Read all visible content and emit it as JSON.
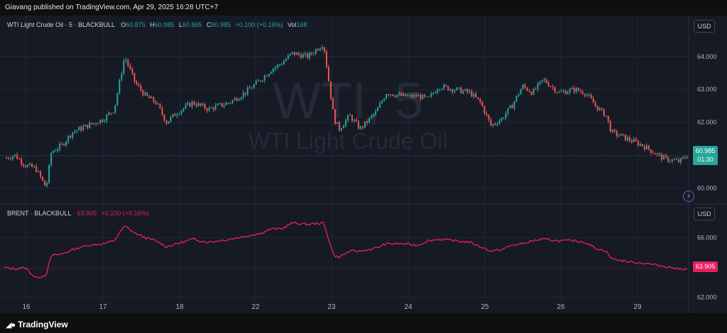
{
  "header": {
    "published": "Giavang published on TradingView.com, Apr 29, 2025 16:28 UTC+7"
  },
  "footer": {
    "brand": "TradingView",
    "brand_icon": "tradingview-logo-icon"
  },
  "colors": {
    "up": "#26a69a",
    "down": "#ef5350",
    "brent": "#e91e63",
    "bg": "#161a25",
    "grid": "#232734"
  },
  "chart_data": [
    {
      "type": "candlestick",
      "symbol_title": "WTI Light Crude Oil · 5 · BLACKBULL",
      "watermark_symbol": "WTI, 5",
      "watermark_name": "WTI Light Crude Oil",
      "ohlc": {
        "O": "60.875",
        "H": "60.985",
        "L": "60.865",
        "C": "60.985",
        "change": "+0.100 (+0.16%)",
        "vol_label": "Vol",
        "vol": "168"
      },
      "currency_button": "USD",
      "y_ticks": [
        "64.000",
        "63.000",
        "62.000",
        "60.000"
      ],
      "ylim": [
        59.6,
        64.9
      ],
      "last_price": "60.985",
      "last_price_value": 60.985,
      "countdown": "01:30",
      "approx_close_path": [
        [
          15.7,
          60.9
        ],
        [
          15.9,
          61.0
        ],
        [
          16.1,
          60.7
        ],
        [
          16.3,
          60.6
        ],
        [
          16.5,
          60.0
        ],
        [
          16.6,
          61.1
        ],
        [
          16.8,
          61.3
        ],
        [
          17.0,
          61.7
        ],
        [
          17.3,
          61.9
        ],
        [
          17.6,
          62.1
        ],
        [
          17.8,
          62.4
        ],
        [
          18.0,
          64.0
        ],
        [
          18.2,
          63.2
        ],
        [
          18.4,
          62.8
        ],
        [
          18.6,
          62.6
        ],
        [
          18.8,
          62.0
        ],
        [
          19.0,
          62.3
        ],
        [
          19.3,
          62.6
        ],
        [
          19.6,
          62.4
        ],
        [
          19.8,
          62.5
        ],
        [
          20.0,
          62.6
        ],
        [
          20.3,
          62.9
        ],
        [
          20.6,
          63.3
        ],
        [
          20.8,
          63.6
        ],
        [
          21.0,
          63.8
        ],
        [
          21.2,
          64.1
        ],
        [
          21.5,
          64.0
        ],
        [
          21.8,
          64.4
        ],
        [
          22.0,
          62.1
        ],
        [
          22.1,
          61.8
        ],
        [
          22.3,
          62.2
        ],
        [
          22.5,
          61.8
        ],
        [
          22.8,
          62.3
        ],
        [
          23.0,
          62.9
        ],
        [
          23.3,
          62.8
        ],
        [
          23.6,
          62.8
        ],
        [
          23.8,
          62.7
        ],
        [
          24.0,
          63.1
        ],
        [
          24.3,
          63.0
        ],
        [
          24.6,
          62.9
        ],
        [
          24.8,
          62.6
        ],
        [
          25.0,
          61.9
        ],
        [
          25.2,
          62.1
        ],
        [
          25.4,
          62.5
        ],
        [
          25.6,
          63.1
        ],
        [
          25.8,
          62.9
        ],
        [
          26.0,
          63.3
        ],
        [
          26.3,
          62.9
        ],
        [
          26.6,
          63.0
        ],
        [
          26.8,
          62.9
        ],
        [
          27.0,
          62.5
        ],
        [
          27.2,
          62.2
        ],
        [
          27.3,
          61.7
        ],
        [
          27.6,
          61.5
        ],
        [
          27.9,
          61.3
        ],
        [
          28.1,
          61.1
        ],
        [
          28.3,
          60.9
        ],
        [
          28.6,
          60.8
        ],
        [
          28.75,
          60.985
        ]
      ]
    },
    {
      "type": "line",
      "symbol_title": "BRENT · BLACKBULL",
      "value": "63.905",
      "change": "+0.100 (+0.16%)",
      "currency_button": "USD",
      "y_ticks": [
        "66.000",
        "64.000",
        "62.000"
      ],
      "ylim": [
        61.6,
        67.6
      ],
      "last_price": "63.905",
      "last_price_value": 63.905,
      "approx_path": [
        [
          15.7,
          64.0
        ],
        [
          15.9,
          63.9
        ],
        [
          16.1,
          64.0
        ],
        [
          16.3,
          63.3
        ],
        [
          16.5,
          63.5
        ],
        [
          16.6,
          64.8
        ],
        [
          16.8,
          64.9
        ],
        [
          17.0,
          65.2
        ],
        [
          17.3,
          65.5
        ],
        [
          17.6,
          65.6
        ],
        [
          17.8,
          65.8
        ],
        [
          18.0,
          66.8
        ],
        [
          18.2,
          66.3
        ],
        [
          18.4,
          66.0
        ],
        [
          18.6,
          65.8
        ],
        [
          18.8,
          65.4
        ],
        [
          19.0,
          65.6
        ],
        [
          19.3,
          65.9
        ],
        [
          19.6,
          65.7
        ],
        [
          19.8,
          65.8
        ],
        [
          20.0,
          65.9
        ],
        [
          20.3,
          66.1
        ],
        [
          20.6,
          66.3
        ],
        [
          20.8,
          66.6
        ],
        [
          21.0,
          66.6
        ],
        [
          21.2,
          67.0
        ],
        [
          21.5,
          66.9
        ],
        [
          21.8,
          67.0
        ],
        [
          22.0,
          64.8
        ],
        [
          22.1,
          64.7
        ],
        [
          22.3,
          65.1
        ],
        [
          22.5,
          65.1
        ],
        [
          22.8,
          65.3
        ],
        [
          23.0,
          65.6
        ],
        [
          23.3,
          65.6
        ],
        [
          23.6,
          65.5
        ],
        [
          23.8,
          65.8
        ],
        [
          24.0,
          65.9
        ],
        [
          24.3,
          65.8
        ],
        [
          24.6,
          65.7
        ],
        [
          24.8,
          65.4
        ],
        [
          25.0,
          65.1
        ],
        [
          25.2,
          65.2
        ],
        [
          25.4,
          65.5
        ],
        [
          25.6,
          65.6
        ],
        [
          25.8,
          65.8
        ],
        [
          26.0,
          65.9
        ],
        [
          26.3,
          65.8
        ],
        [
          26.6,
          65.8
        ],
        [
          26.8,
          65.7
        ],
        [
          27.0,
          65.3
        ],
        [
          27.2,
          65.1
        ],
        [
          27.3,
          64.6
        ],
        [
          27.6,
          64.4
        ],
        [
          27.9,
          64.3
        ],
        [
          28.1,
          64.2
        ],
        [
          28.3,
          64.1
        ],
        [
          28.6,
          63.9
        ],
        [
          28.75,
          63.905
        ]
      ]
    }
  ],
  "x_axis": {
    "type": "time",
    "tick_labels": [
      "16",
      "17",
      "18",
      "22",
      "23",
      "24",
      "25",
      "26",
      "29"
    ]
  }
}
